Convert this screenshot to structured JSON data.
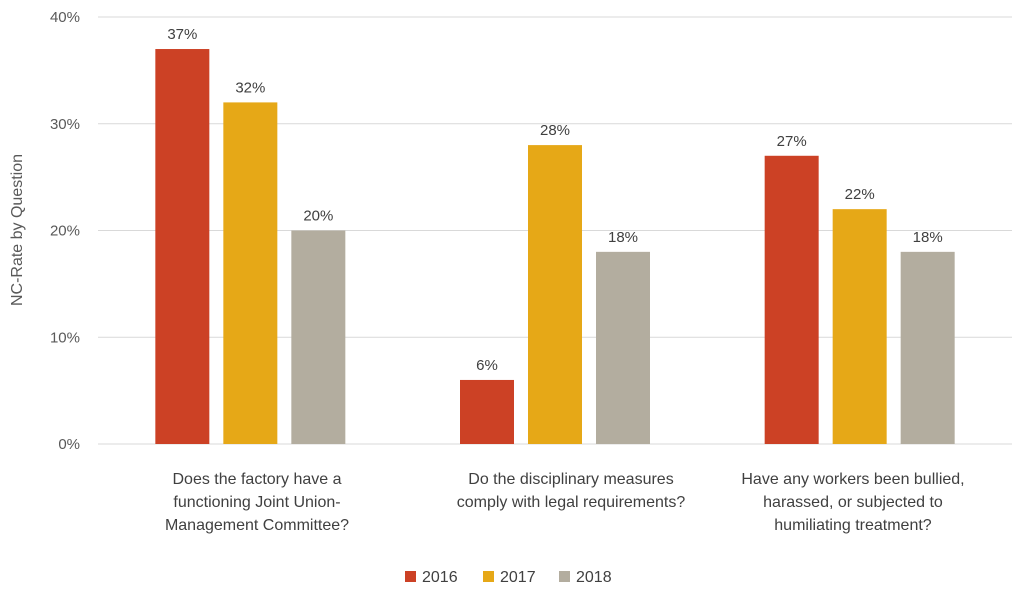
{
  "chart_data": {
    "type": "bar",
    "title": "",
    "xlabel": "",
    "ylabel": "NC-Rate by Question",
    "ylim": [
      0,
      40
    ],
    "yticks": [
      0,
      10,
      20,
      30,
      40
    ],
    "ytick_labels": [
      "0%",
      "10%",
      "20%",
      "30%",
      "40%"
    ],
    "grid": true,
    "legend_position": "bottom",
    "categories": [
      [
        "Does the factory have a",
        "functioning Joint Union-",
        "Management Committee?"
      ],
      [
        "Do the disciplinary measures",
        "comply with legal requirements?"
      ],
      [
        "Have any workers been bullied,",
        "harassed, or subjected to",
        "humiliating treatment?"
      ]
    ],
    "series": [
      {
        "name": "2016",
        "color": "#cc4125",
        "values": [
          37,
          6,
          27
        ],
        "labels": [
          "37%",
          "6%",
          "27%"
        ]
      },
      {
        "name": "2017",
        "color": "#e6a817",
        "values": [
          32,
          28,
          22
        ],
        "labels": [
          "32%",
          "28%",
          "22%"
        ]
      },
      {
        "name": "2018",
        "color": "#b3ad9f",
        "values": [
          20,
          18,
          18
        ],
        "labels": [
          "20%",
          "18%",
          "18%"
        ]
      }
    ]
  }
}
